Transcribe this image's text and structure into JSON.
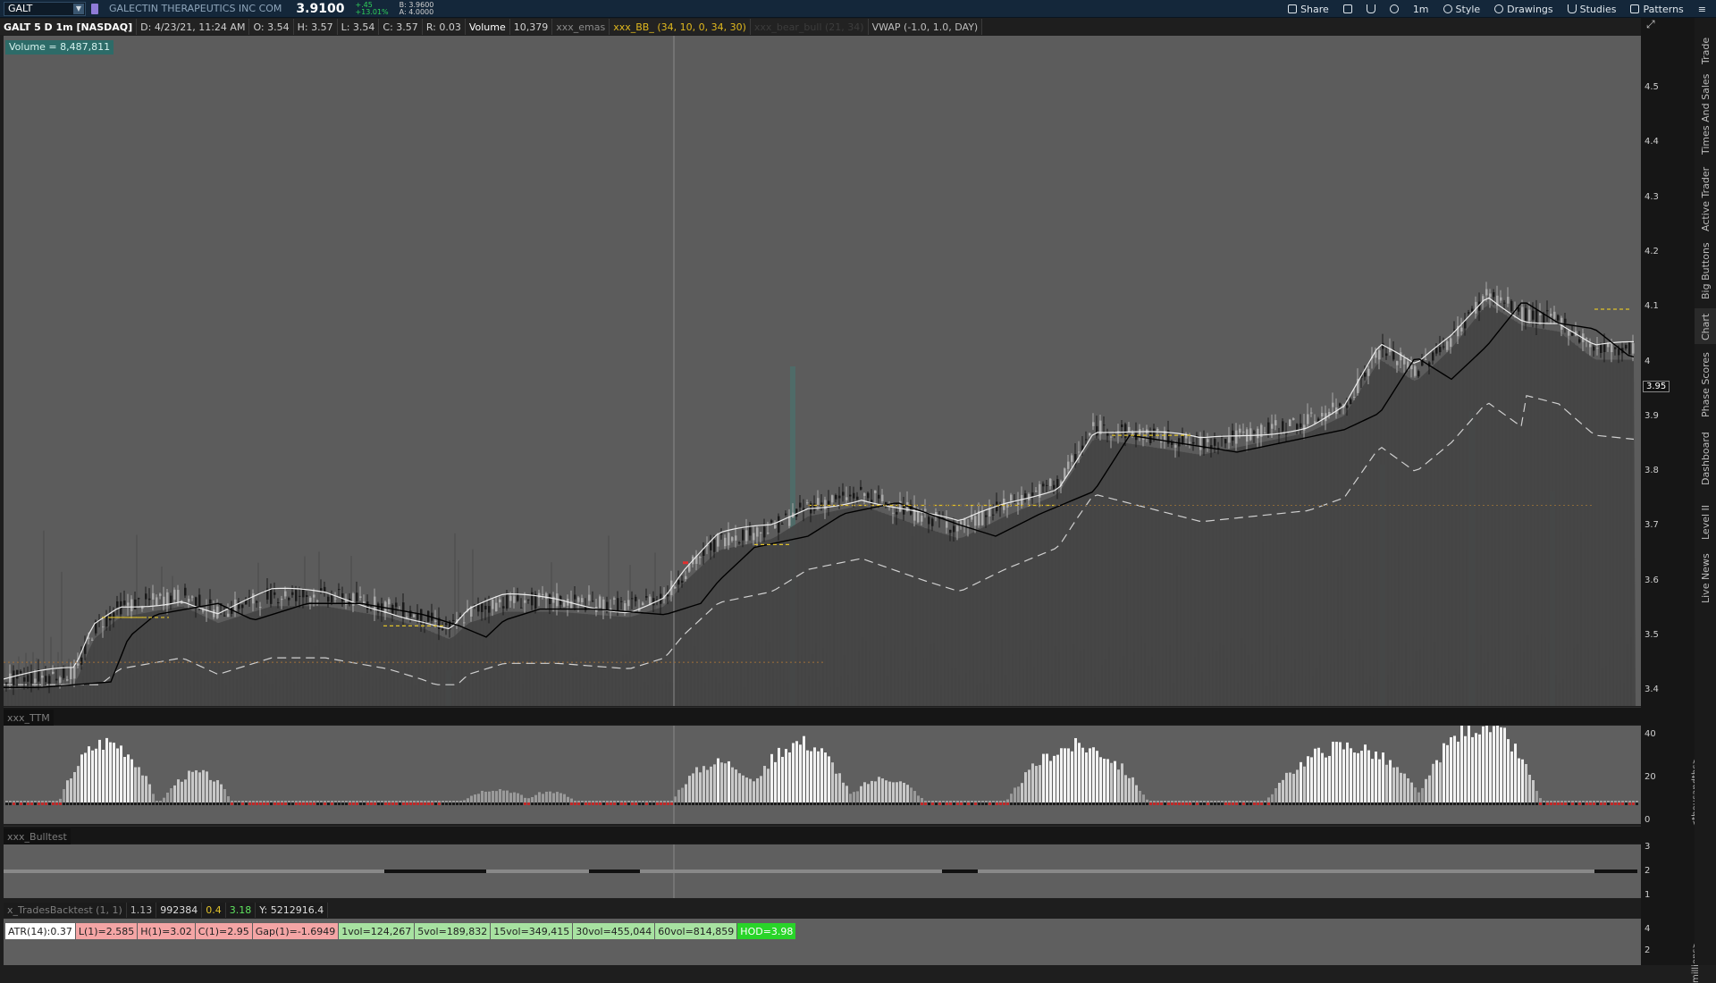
{
  "header": {
    "symbol": "GALT",
    "company": "GALECTIN THERAPEUTICS INC COM",
    "last": "3.9100",
    "change": "+.45",
    "change_pct": "+13.01%",
    "bid": "B: 3.9600",
    "ask": "A: 4.0000"
  },
  "toolbar": {
    "share": "Share",
    "interval": "1m",
    "style": "Style",
    "drawings": "Drawings",
    "studies": "Studies",
    "patterns": "Patterns"
  },
  "infobar": {
    "symbol": "GALT 5 D 1m [NASDAQ]",
    "date": "D: 4/23/21, 11:24 AM",
    "open": "O: 3.54",
    "high": "H: 3.57",
    "low": "L: 3.54",
    "close": "C: 3.57",
    "range": "R: 0.03",
    "volume_label": "Volume",
    "volume_value": "10,379",
    "emas": "xxx_emas",
    "bb": "xxx_BB_ (34, 10, 0, 34, 30)",
    "bull": "xxx_bear_bull (21, 34)",
    "vwap": "VWAP (-1.0, 1.0, DAY)"
  },
  "volume_badge": "Volume = 8,487,811",
  "panes": {
    "ttm": "xxx_TTM",
    "bulltest": "xxx_Bulltest"
  },
  "backtest": {
    "name": "x_TradesBacktest (1, 1)",
    "v1": "1.13",
    "v2": "992384",
    "v3": "0.4",
    "v4": "3.18",
    "v5": "Y: 5212916.4"
  },
  "stats": {
    "atr": "ATR(14):0.37",
    "low": "L(1)=2.585",
    "high": "H(1)=3.02",
    "close": "C(1)=2.95",
    "gap": "Gap(1)=-1.6949",
    "vol1": "1vol=124,267",
    "vol5": "5vol=189,832",
    "vol15": "15vol=349,415",
    "vol30": "30vol=455,044",
    "vol60": "60vol=814,859",
    "hod": "HOD=3.98"
  },
  "axis": {
    "price_ticks": [
      "4.5",
      "4.4",
      "4.3",
      "4.2",
      "4.1",
      "4",
      "3.9",
      "3.8",
      "3.7",
      "3.6",
      "3.5",
      "3.4"
    ],
    "current_price_tag": "3.95",
    "ttm_ticks": [
      "40",
      "20",
      "0"
    ],
    "ttm_unit": "<thousandths>",
    "bull_ticks": [
      "3",
      "2",
      "1"
    ],
    "vol_ticks": [
      "4",
      "2"
    ],
    "vol_unit": "millions>"
  },
  "tabs": [
    "Trade",
    "Times And Sales",
    "Active Trader",
    "Big Buttons",
    "Chart",
    "Phase Scores",
    "Dashboard",
    "Level II",
    "Live News"
  ],
  "colors": {
    "bg_pane": "#5c5c5c",
    "bb_band": "#444444",
    "candle_up": "#9a9a9a",
    "candle_down": "#1c1c1c",
    "ema_white": "#e6e6e6",
    "ema_black": "#000000",
    "vwap_dash": "#cfcfcf",
    "yellow_dash": "#e0c12a"
  }
}
